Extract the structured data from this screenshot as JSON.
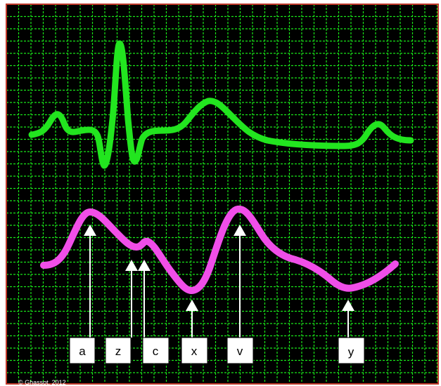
{
  "diagram": {
    "grid_color": "#19e619",
    "background_color": "#000000",
    "border_color": "#c0392b",
    "ecg_color": "#22e51f",
    "jvp_color": "#f04ee8",
    "arrow_color": "#ffffff",
    "labels": [
      {
        "id": "a",
        "text": "a"
      },
      {
        "id": "z",
        "text": "z"
      },
      {
        "id": "c",
        "text": "c"
      },
      {
        "id": "x",
        "text": "x"
      },
      {
        "id": "v",
        "text": "v"
      },
      {
        "id": "y",
        "text": "y"
      }
    ],
    "copyright": "© Ghassot, 2012"
  }
}
